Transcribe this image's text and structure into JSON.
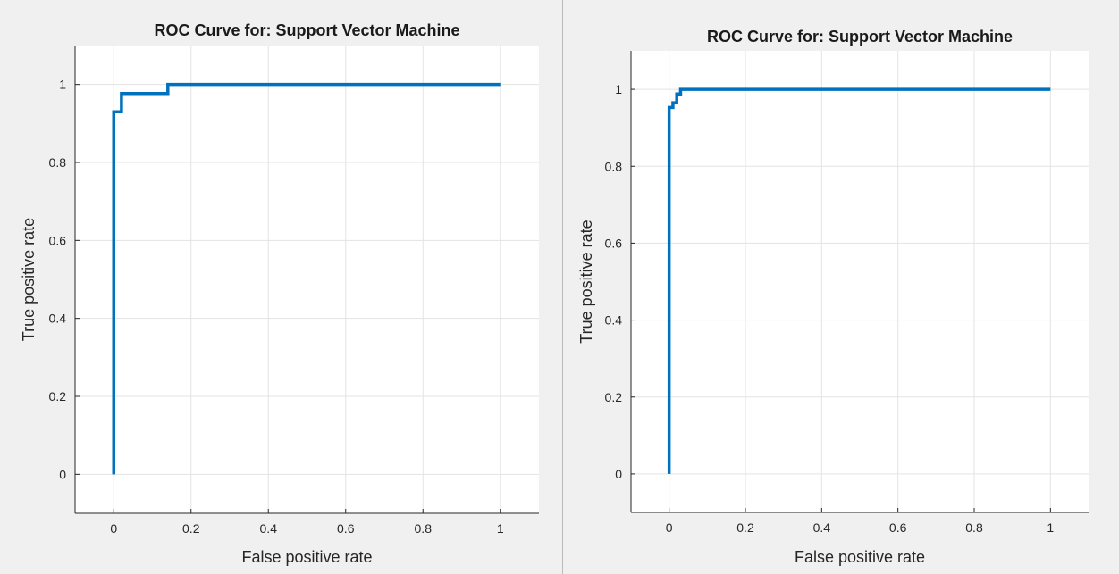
{
  "chart_data": [
    {
      "type": "line",
      "title": "ROC Curve for: Support Vector Machine",
      "xlabel": "False positive rate",
      "ylabel": "True positive rate",
      "xlim": [
        -0.1,
        1.1
      ],
      "ylim": [
        -0.1,
        1.1
      ],
      "xticks": [
        0,
        0.2,
        0.4,
        0.6,
        0.8,
        1
      ],
      "xtick_labels": [
        "0",
        "0.2",
        "0.4",
        "0.6",
        "0.8",
        "1"
      ],
      "yticks": [
        0,
        0.2,
        0.4,
        0.6,
        0.8,
        1
      ],
      "ytick_labels": [
        "0",
        "0.2",
        "0.4",
        "0.6",
        "0.8",
        "1"
      ],
      "grid": true,
      "line_color": "#0072bd",
      "series": [
        {
          "x": [
            0,
            0,
            0.02,
            0.02,
            0.14,
            0.14,
            1
          ],
          "y": [
            0,
            0.93,
            0.93,
            0.977,
            0.977,
            1,
            1
          ]
        }
      ]
    },
    {
      "type": "line",
      "title": "ROC Curve for: Support Vector Machine",
      "xlabel": "False positive rate",
      "ylabel": "True positive rate",
      "xlim": [
        -0.1,
        1.1
      ],
      "ylim": [
        -0.1,
        1.1
      ],
      "xticks": [
        0,
        0.2,
        0.4,
        0.6,
        0.8,
        1
      ],
      "xtick_labels": [
        "0",
        "0.2",
        "0.4",
        "0.6",
        "0.8",
        "1"
      ],
      "yticks": [
        0,
        0.2,
        0.4,
        0.6,
        0.8,
        1
      ],
      "ytick_labels": [
        "0",
        "0.2",
        "0.4",
        "0.6",
        "0.8",
        "1"
      ],
      "grid": true,
      "line_color": "#0072bd",
      "series": [
        {
          "x": [
            0,
            0,
            0.01,
            0.01,
            0.02,
            0.02,
            0.03,
            0.03,
            1
          ],
          "y": [
            0,
            0.953,
            0.953,
            0.965,
            0.965,
            0.988,
            0.988,
            1,
            1
          ]
        }
      ]
    }
  ]
}
